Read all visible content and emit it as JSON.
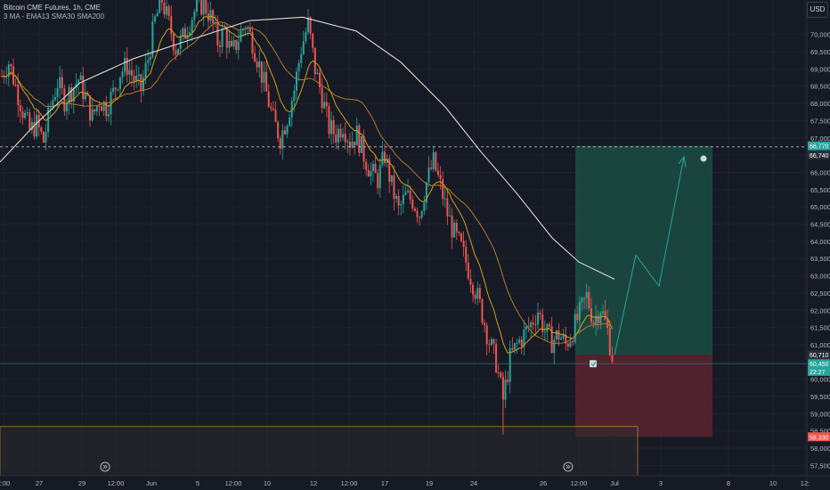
{
  "header": {
    "symbol_title": "Bitcoin CME Futures, 1h, CME",
    "indicators_label": "3 MA - EMA13 SMA30 SMA200",
    "currency_button": "USD"
  },
  "colors": {
    "background": "#161a25",
    "grid": "#1e2230",
    "axis_text": "#b2b5be",
    "bull_candle": "#26a69a",
    "bear_candle": "#ef5350",
    "ema13": "#d4a017",
    "sma30": "#b07a2a",
    "sma200": "#e0dcc8",
    "profit_zone": "#1b4d44",
    "loss_zone": "#5a2530",
    "target_price_tag": "#26a69a",
    "stop_price_tag": "#ef5350",
    "demand_box_border": "#f5a623",
    "projection_line": "#26a69a"
  },
  "chart_data": {
    "type": "candlestick",
    "title": "Bitcoin CME Futures, 1h, CME",
    "indicators": [
      "EMA13",
      "SMA30",
      "SMA200"
    ],
    "y_axis": {
      "range": [
        57200,
        71000
      ],
      "tick_labels": [
        "70,000",
        "69,500",
        "69,000",
        "68,500",
        "68,000",
        "67,500",
        "67,000",
        "66,500",
        "66,000",
        "65,500",
        "65,000",
        "64,500",
        "64,000",
        "63,500",
        "63,000",
        "62,500",
        "62,000",
        "61,500",
        "61,000",
        "60,500",
        "60,000",
        "59,500",
        "59,000",
        "58,500",
        "58,000",
        "57,500"
      ],
      "tick_values": [
        70000,
        69500,
        69000,
        68500,
        68000,
        67500,
        67000,
        66500,
        66000,
        65500,
        65000,
        64500,
        64000,
        63500,
        63000,
        62500,
        62000,
        61500,
        61000,
        60500,
        60000,
        59500,
        59000,
        58500,
        58000,
        57500
      ],
      "price_tags": [
        {
          "label": "66,770",
          "value": 66770,
          "kind": "target"
        },
        {
          "label": "66,740",
          "value": 66740,
          "kind": "dashed-line"
        },
        {
          "label": "60,710",
          "value": 60710,
          "kind": "entry"
        },
        {
          "label": "60,450",
          "value": 60450,
          "kind": "current"
        },
        {
          "label": "22:27",
          "value": 60330,
          "kind": "countdown"
        },
        {
          "label": "58,330",
          "value": 58330,
          "kind": "stop"
        }
      ]
    },
    "x_axis": {
      "tick_labels": [
        "2:00",
        "27",
        "29",
        "12:00",
        "Jun",
        "5",
        "12:00",
        "10",
        "12",
        "12:00",
        "17",
        "19",
        "24",
        "26",
        "12:00",
        "Jul",
        "3",
        "8",
        "10",
        "12:"
      ]
    },
    "price_path": [
      {
        "x": 0,
        "close": 68800
      },
      {
        "x": 3,
        "close": 69200
      },
      {
        "x": 6,
        "close": 68500
      },
      {
        "x": 9,
        "close": 67800
      },
      {
        "x": 12,
        "close": 67200
      },
      {
        "x": 15,
        "close": 67400
      },
      {
        "x": 18,
        "close": 66900
      },
      {
        "x": 21,
        "close": 67900
      },
      {
        "x": 24,
        "close": 68600
      },
      {
        "x": 27,
        "close": 68100
      },
      {
        "x": 30,
        "close": 68400
      },
      {
        "x": 33,
        "close": 68700
      },
      {
        "x": 36,
        "close": 68200
      },
      {
        "x": 39,
        "close": 67600
      },
      {
        "x": 42,
        "close": 68100
      },
      {
        "x": 45,
        "close": 67900
      },
      {
        "x": 48,
        "close": 68300
      },
      {
        "x": 51,
        "close": 68900
      },
      {
        "x": 54,
        "close": 69100
      },
      {
        "x": 57,
        "close": 68700
      },
      {
        "x": 60,
        "close": 68400
      },
      {
        "x": 63,
        "close": 69300
      },
      {
        "x": 66,
        "close": 70400
      },
      {
        "x": 69,
        "close": 71000
      },
      {
        "x": 72,
        "close": 70300
      },
      {
        "x": 75,
        "close": 69600
      },
      {
        "x": 78,
        "close": 69900
      },
      {
        "x": 81,
        "close": 70400
      },
      {
        "x": 84,
        "close": 70800
      },
      {
        "x": 87,
        "close": 70900
      },
      {
        "x": 90,
        "close": 70500
      },
      {
        "x": 93,
        "close": 69800
      },
      {
        "x": 96,
        "close": 70100
      },
      {
        "x": 99,
        "close": 69400
      },
      {
        "x": 102,
        "close": 69900
      },
      {
        "x": 105,
        "close": 70300
      },
      {
        "x": 108,
        "close": 69800
      },
      {
        "x": 111,
        "close": 69100
      },
      {
        "x": 114,
        "close": 68300
      },
      {
        "x": 117,
        "close": 67500
      },
      {
        "x": 120,
        "close": 67000
      },
      {
        "x": 123,
        "close": 67600
      },
      {
        "x": 126,
        "close": 68400
      },
      {
        "x": 129,
        "close": 69600
      },
      {
        "x": 132,
        "close": 70300
      },
      {
        "x": 135,
        "close": 69000
      },
      {
        "x": 138,
        "close": 68200
      },
      {
        "x": 141,
        "close": 67300
      },
      {
        "x": 144,
        "close": 67100
      },
      {
        "x": 147,
        "close": 67400
      },
      {
        "x": 150,
        "close": 66900
      },
      {
        "x": 153,
        "close": 67100
      },
      {
        "x": 156,
        "close": 66500
      },
      {
        "x": 159,
        "close": 66000
      },
      {
        "x": 162,
        "close": 65800
      },
      {
        "x": 165,
        "close": 66500
      },
      {
        "x": 168,
        "close": 65600
      },
      {
        "x": 171,
        "close": 64900
      },
      {
        "x": 174,
        "close": 65300
      },
      {
        "x": 177,
        "close": 65200
      },
      {
        "x": 180,
        "close": 64800
      },
      {
        "x": 183,
        "close": 65700
      },
      {
        "x": 186,
        "close": 66300
      },
      {
        "x": 189,
        "close": 65600
      },
      {
        "x": 192,
        "close": 64800
      },
      {
        "x": 195,
        "close": 64200
      },
      {
        "x": 198,
        "close": 63800
      },
      {
        "x": 201,
        "close": 63200
      },
      {
        "x": 204,
        "close": 62600
      },
      {
        "x": 207,
        "close": 61900
      },
      {
        "x": 210,
        "close": 61100
      },
      {
        "x": 213,
        "close": 60500
      },
      {
        "x": 216,
        "close": 59400
      },
      {
        "x": 219,
        "close": 60600
      },
      {
        "x": 222,
        "close": 61000
      },
      {
        "x": 225,
        "close": 61300
      },
      {
        "x": 228,
        "close": 61600
      },
      {
        "x": 231,
        "close": 62000
      },
      {
        "x": 234,
        "close": 61400
      },
      {
        "x": 237,
        "close": 61100
      },
      {
        "x": 240,
        "close": 61300
      },
      {
        "x": 243,
        "close": 61000
      },
      {
        "x": 246,
        "close": 61400
      },
      {
        "x": 249,
        "close": 61900
      },
      {
        "x": 252,
        "close": 62400
      },
      {
        "x": 255,
        "close": 61700
      },
      {
        "x": 258,
        "close": 62100
      },
      {
        "x": 261,
        "close": 61400
      },
      {
        "x": 264,
        "close": 60300
      }
    ],
    "long_position": {
      "entry": 60710,
      "target": 66770,
      "stop": 58330
    },
    "projection_path": [
      60700,
      63600,
      62700,
      66450
    ],
    "demand_zone": {
      "top": 58630,
      "bottom": 57200
    }
  }
}
